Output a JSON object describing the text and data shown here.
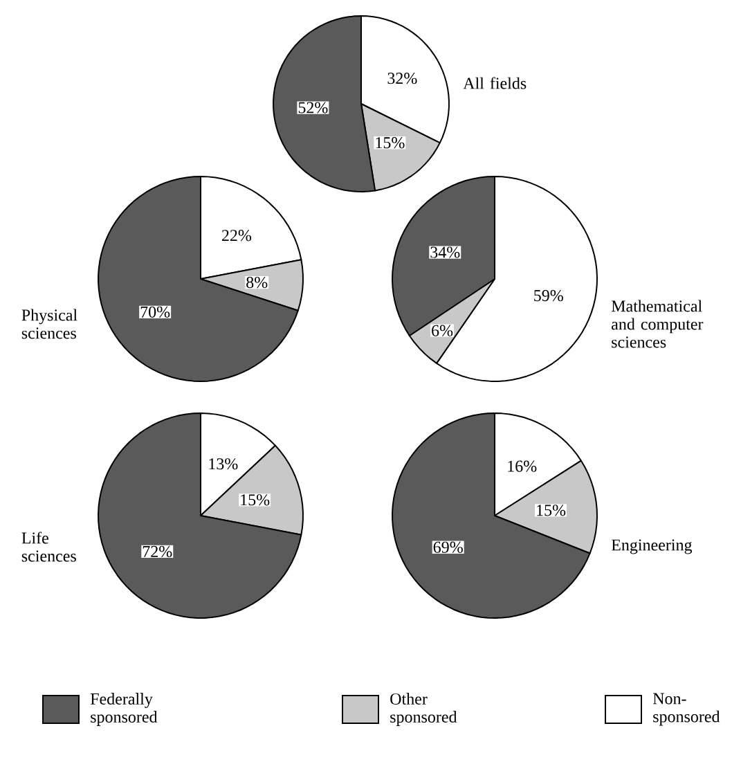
{
  "chart_data": [
    {
      "type": "pie",
      "title": "All fields",
      "categories": [
        "Non-sponsored",
        "Other sponsored",
        "Federally sponsored"
      ],
      "values": [
        32,
        15,
        52
      ],
      "value_labels": [
        "32%",
        "15%",
        "52%"
      ],
      "colors": [
        "#ffffff",
        "#c8c8c8",
        "#5a5a5a"
      ],
      "legend": "bottom"
    },
    {
      "type": "pie",
      "title": "Physical sciences",
      "categories": [
        null,
        null,
        null
      ],
      "values": [
        22,
        8,
        70
      ],
      "value_labels": [
        "22%",
        "8%",
        "70%"
      ],
      "colors": [
        "#ffffff",
        "#c8c8c8",
        "#5a5a5a"
      ]
    },
    {
      "type": "pie",
      "title": "Mathematical and computer sciences",
      "categories": [
        null,
        null,
        null
      ],
      "values": [
        59,
        6,
        34
      ],
      "value_labels": [
        "59%",
        "6%",
        "34%"
      ],
      "colors": [
        "#ffffff",
        "#c8c8c8",
        "#5a5a5a"
      ]
    },
    {
      "type": "pie",
      "title": "Life sciences",
      "categories": [
        null,
        null,
        null
      ],
      "values": [
        13,
        15,
        72
      ],
      "value_labels": [
        "13%",
        "15%",
        "72%"
      ],
      "colors": [
        "#ffffff",
        "#c8c8c8",
        "#5a5a5a"
      ]
    },
    {
      "type": "pie",
      "title": "Engineering",
      "categories": [
        null,
        null,
        null
      ],
      "values": [
        16,
        15,
        69
      ],
      "value_labels": [
        "16%",
        "15%",
        "69%"
      ],
      "colors": [
        "#ffffff",
        "#c8c8c8",
        "#5a5a5a"
      ]
    }
  ]
}
